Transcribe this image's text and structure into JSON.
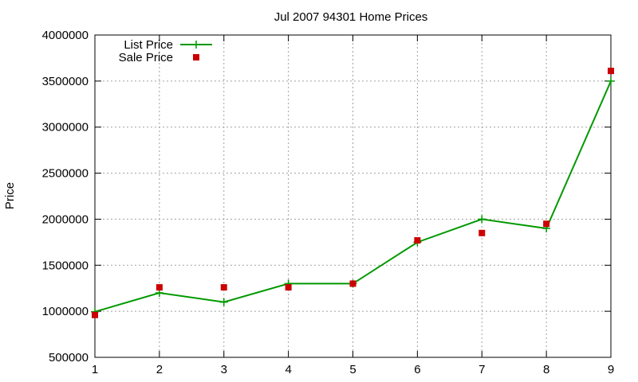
{
  "chart_data": {
    "type": "line",
    "title": "Jul 2007 94301 Home Prices",
    "xlabel": "",
    "ylabel": "Price",
    "x": [
      1,
      2,
      3,
      4,
      5,
      6,
      7,
      8,
      9
    ],
    "xlim": [
      1,
      9
    ],
    "ylim": [
      500000,
      4000000
    ],
    "x_ticks": [
      "1",
      "2",
      "3",
      "4",
      "5",
      "6",
      "7",
      "8",
      "9"
    ],
    "y_ticks": [
      "500000",
      "1000000",
      "1500000",
      "2000000",
      "2500000",
      "3000000",
      "3500000",
      "4000000"
    ],
    "grid": true,
    "legend_position": "top-left",
    "series": [
      {
        "name": "List Price",
        "style": "line+cross",
        "color": "#009900",
        "values": [
          995000,
          1200000,
          1100000,
          1300000,
          1300000,
          1750000,
          2000000,
          1900000,
          3500000
        ]
      },
      {
        "name": "Sale Price",
        "style": "square-marker",
        "color": "#cc0000",
        "values": [
          960000,
          1260000,
          1260000,
          1260000,
          1300000,
          1770000,
          1850000,
          1950000,
          3610000
        ]
      }
    ]
  }
}
